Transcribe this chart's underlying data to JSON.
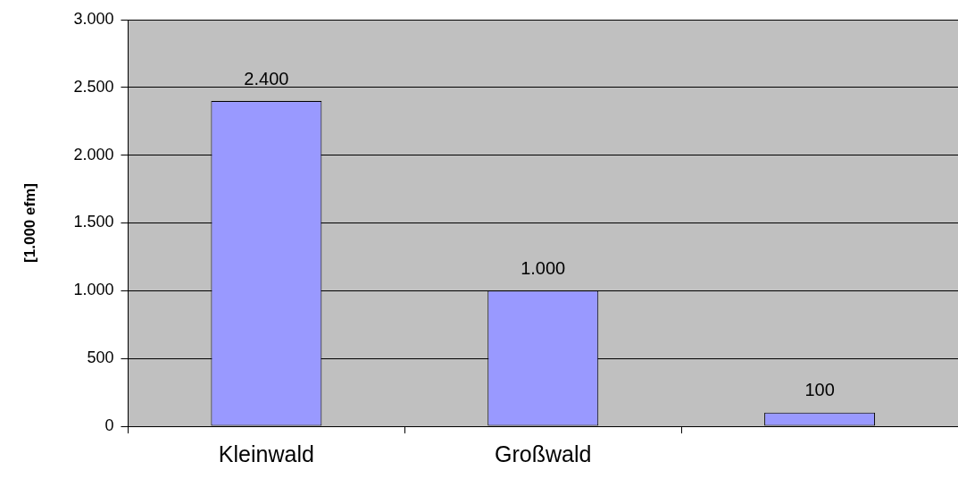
{
  "chart_data": {
    "type": "bar",
    "ylabel": "[1.000 efm]",
    "categories": [
      "Kleinwald",
      "Großwald",
      null
    ],
    "values": [
      2400,
      1000,
      100
    ],
    "value_labels": [
      "2.400",
      "1.000",
      "100"
    ],
    "color": "#9999ff",
    "ylim": [
      0,
      3000
    ],
    "yticks": [
      0,
      500,
      {
        "value": 1000,
        "label": "1.000"
      },
      {
        "value": 1500,
        "label": "1.500"
      },
      {
        "value": 2000,
        "label": "2.000"
      },
      {
        "value": 2500,
        "label": "2.500"
      },
      {
        "value": 3000,
        "label": "3.000"
      }
    ],
    "grid": "y",
    "legend": false
  }
}
